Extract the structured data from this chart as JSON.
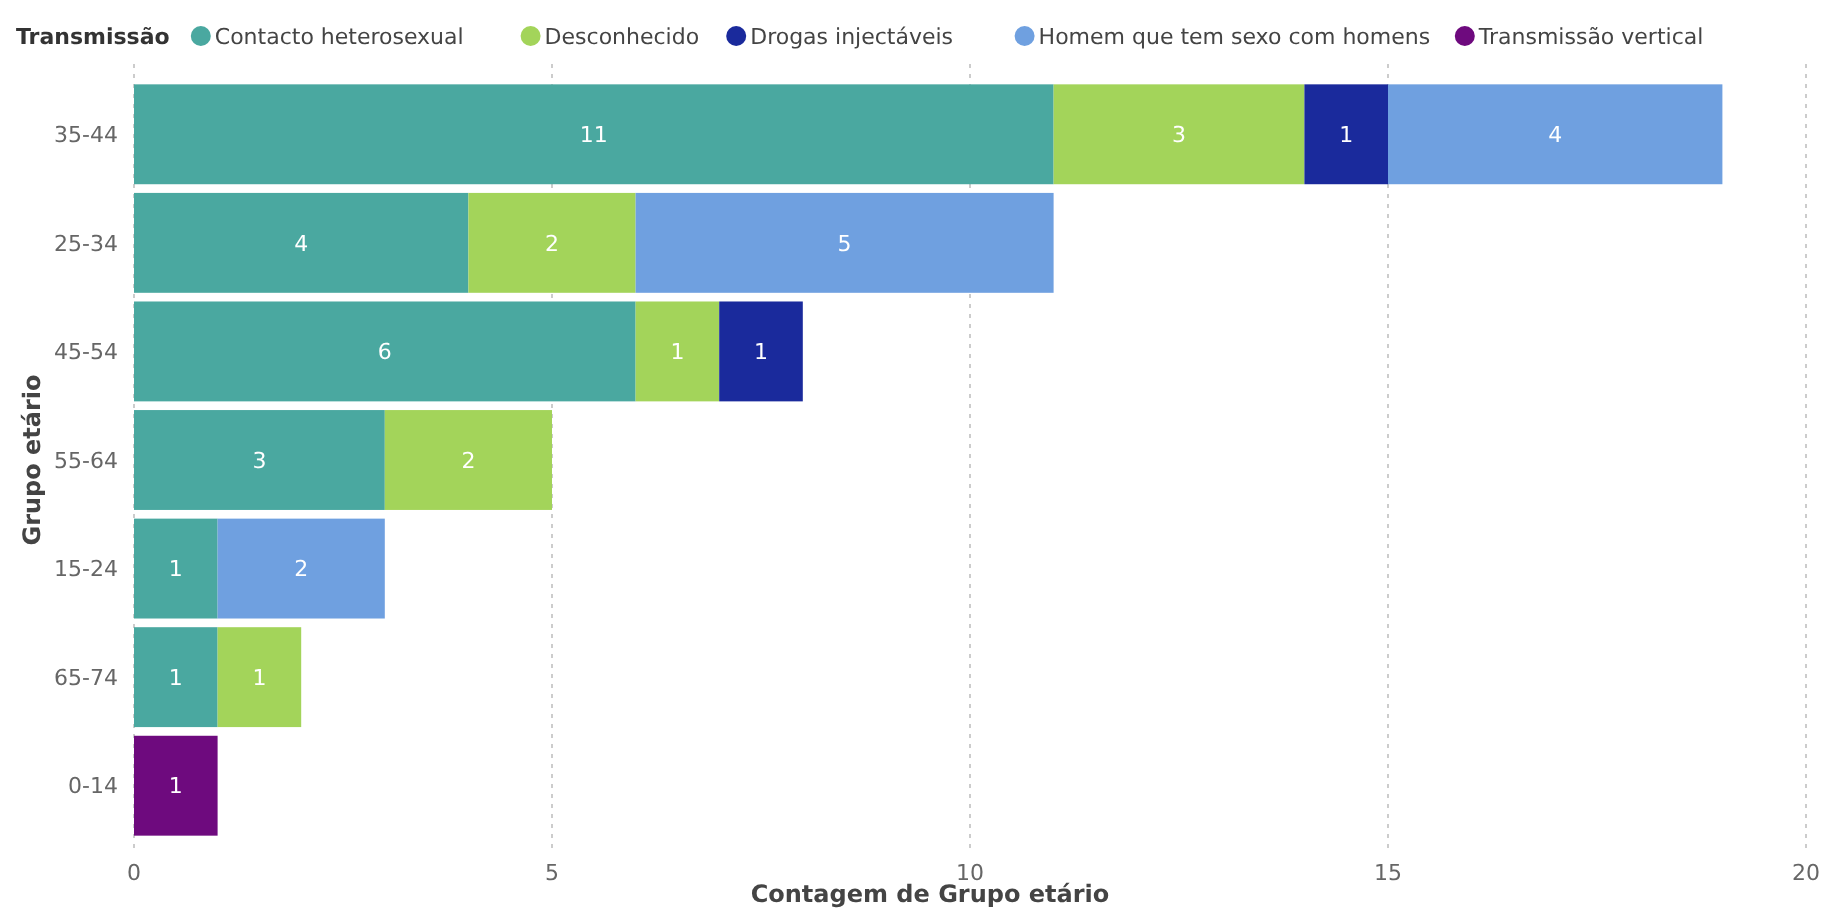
{
  "chart_data": {
    "type": "bar",
    "orientation": "horizontal",
    "stacked": true,
    "xlabel": "Contagem de Grupo etário",
    "ylabel": "Grupo etário",
    "legend_title": "Transmissão",
    "legend": "top left",
    "grid": "x",
    "data_labels": true,
    "categories": [
      "35-44",
      "25-34",
      "45-54",
      "55-64",
      "15-24",
      "65-74",
      "0-14"
    ],
    "xlim": [
      0,
      20
    ],
    "xticks": [
      0,
      5,
      10,
      15,
      20
    ],
    "series": [
      {
        "name": "Contacto heterosexual",
        "color": "#4aa8a0",
        "values": [
          11,
          4,
          6,
          3,
          1,
          1,
          null
        ]
      },
      {
        "name": "Desconhecido",
        "color": "#a3d45a",
        "values": [
          3,
          2,
          1,
          2,
          null,
          1,
          null
        ]
      },
      {
        "name": "Drogas injectáveis",
        "color": "#1a2a9c",
        "values": [
          1,
          null,
          1,
          null,
          null,
          null,
          null
        ]
      },
      {
        "name": "Homem que tem sexo com homens",
        "color": "#6fa0e0",
        "values": [
          4,
          5,
          null,
          null,
          2,
          null,
          null
        ]
      },
      {
        "name": "Transmissão vertical",
        "color": "#6e0a7e",
        "values": [
          null,
          null,
          null,
          null,
          null,
          null,
          1
        ]
      }
    ]
  }
}
